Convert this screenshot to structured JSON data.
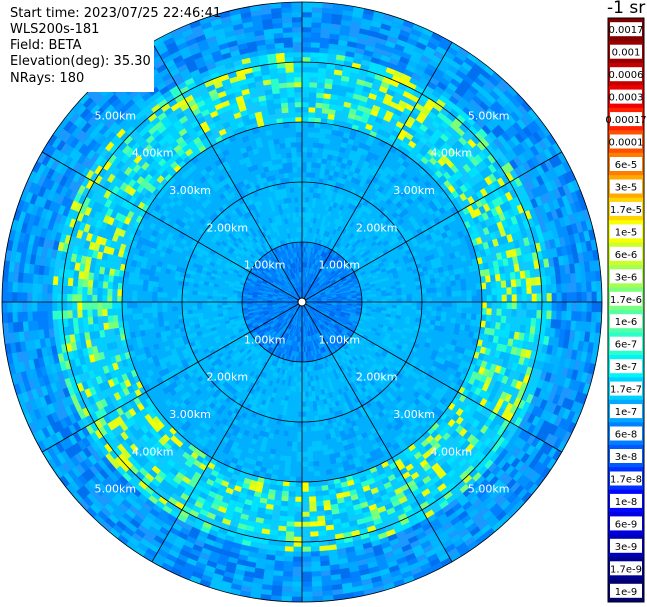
{
  "info": {
    "start_time": "Start time: 2023/07/25 22:46:41",
    "instrument": "WLS200s-181",
    "field": "Field: BETA",
    "elevation": "Elevation(deg): 35.30",
    "nrays": "NRays: 180"
  },
  "colorbar": {
    "title": "-1 sr",
    "ticks": [
      "0.0017",
      "0.001",
      "0.0006",
      "0.0003",
      "0.00017",
      "0.0001",
      "6e-5",
      "3e-5",
      "1.7e-5",
      "1e-5",
      "6e-6",
      "3e-6",
      "1.7e-6",
      "1e-6",
      "6e-7",
      "3e-7",
      "1.7e-7",
      "1e-7",
      "6e-8",
      "3e-8",
      "1.7e-8",
      "1e-8",
      "6e-9",
      "3e-9",
      "1.7e-9",
      "1e-9"
    ],
    "colors": [
      "#7f0000",
      "#9a0000",
      "#c40000",
      "#ee0000",
      "#ff2000",
      "#ff5000",
      "#ff7c00",
      "#ffa800",
      "#ffd400",
      "#f8ff00",
      "#ccff2a",
      "#a4ff52",
      "#7cff7a",
      "#52ffa4",
      "#2affcc",
      "#00f4f8",
      "#00d0ff",
      "#00a8ff",
      "#0080ff",
      "#0058ff",
      "#0030ff",
      "#0008ff",
      "#0000e0",
      "#0000b8",
      "#000090",
      "#000070"
    ]
  },
  "chart_data": {
    "type": "heatmap",
    "projection": "polar PPI",
    "range_rings_km": [
      1,
      2,
      3,
      4,
      5
    ],
    "ring_labels": [
      "1.00km",
      "2.00km",
      "3.00km",
      "4.00km",
      "5.00km"
    ],
    "max_range_km": 5.0,
    "azimuth_spokes_deg": [
      0,
      30,
      60,
      90,
      120,
      150,
      180,
      210,
      240,
      270,
      300,
      330
    ],
    "n_rays": 180,
    "dominant_value": "1e-7",
    "enhanced_value": "1e-5"
  }
}
